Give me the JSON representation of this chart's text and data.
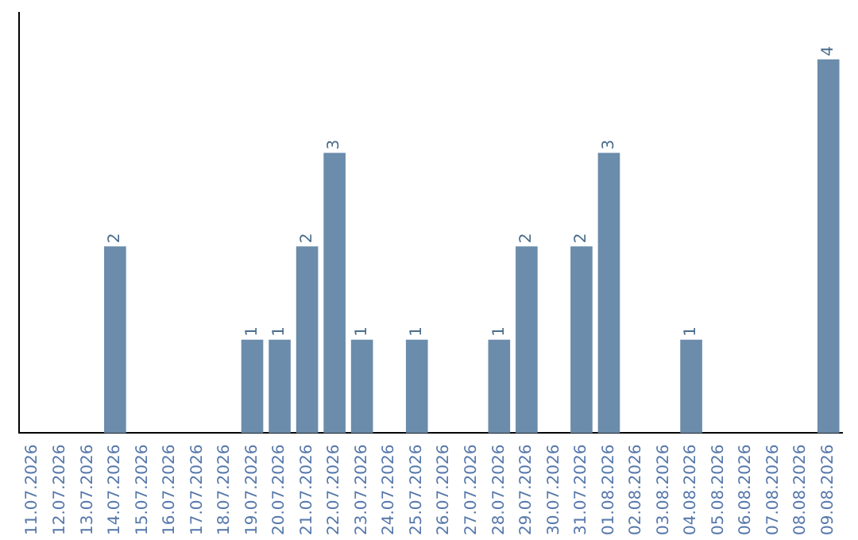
{
  "chart_data": {
    "type": "bar",
    "categories": [
      "11.07.2026",
      "12.07.2026",
      "13.07.2026",
      "14.07.2026",
      "15.07.2026",
      "16.07.2026",
      "17.07.2026",
      "18.07.2026",
      "19.07.2026",
      "20.07.2026",
      "21.07.2026",
      "22.07.2026",
      "23.07.2026",
      "24.07.2026",
      "25.07.2026",
      "26.07.2026",
      "27.07.2026",
      "28.07.2026",
      "29.07.2026",
      "30.07.2026",
      "31.07.2026",
      "01.08.2026",
      "02.08.2026",
      "03.08.2026",
      "04.08.2026",
      "05.08.2026",
      "06.08.2026",
      "07.08.2026",
      "08.08.2026",
      "09.08.2026"
    ],
    "values": [
      0,
      0,
      0,
      2,
      0,
      0,
      0,
      0,
      1,
      1,
      2,
      3,
      1,
      0,
      1,
      0,
      0,
      1,
      2,
      0,
      2,
      3,
      0,
      0,
      1,
      0,
      0,
      0,
      0,
      4
    ],
    "value_labels": [
      null,
      null,
      null,
      "2",
      null,
      null,
      null,
      null,
      "1",
      "1",
      "2",
      "3",
      "1",
      null,
      "1",
      null,
      null,
      "1",
      "2",
      null,
      "2",
      "3",
      null,
      null,
      "1",
      null,
      null,
      null,
      null,
      "4"
    ],
    "color": "#6b8cab",
    "tick_labels": "x",
    "grid": false,
    "legend": false
  }
}
